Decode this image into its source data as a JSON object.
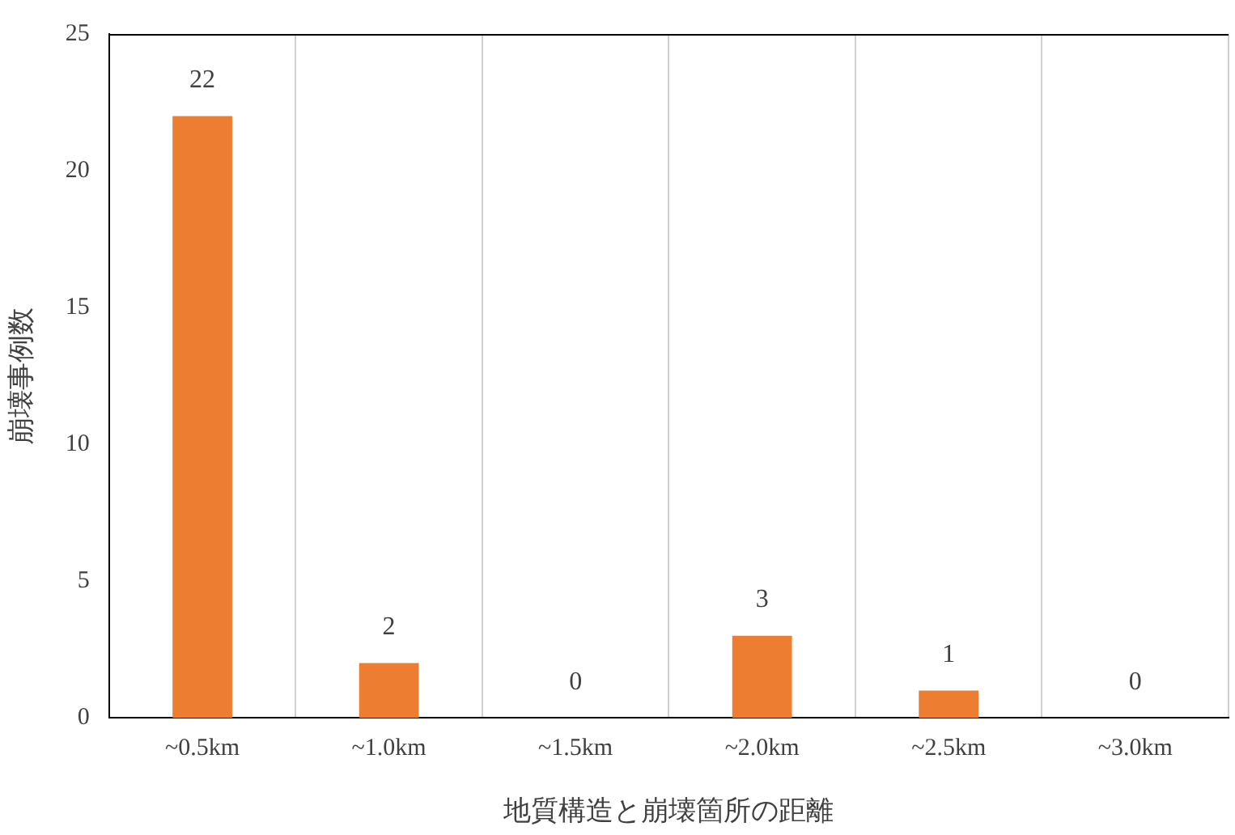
{
  "chart_data": {
    "type": "bar",
    "xlabel": "地質構造と崩壊箇所の距離",
    "ylabel": "崩壊事例数",
    "categories": [
      "~0.5km",
      "~1.0km",
      "~1.5km",
      "~2.0km",
      "~2.5km",
      "~3.0km"
    ],
    "values": [
      22,
      2,
      0,
      3,
      1,
      0
    ],
    "color": "#ed7d31",
    "ylim": [
      0,
      25
    ],
    "yticks": [
      0,
      5,
      10,
      15,
      20,
      25
    ],
    "grid": "x",
    "data_labels": true,
    "legend": false
  }
}
